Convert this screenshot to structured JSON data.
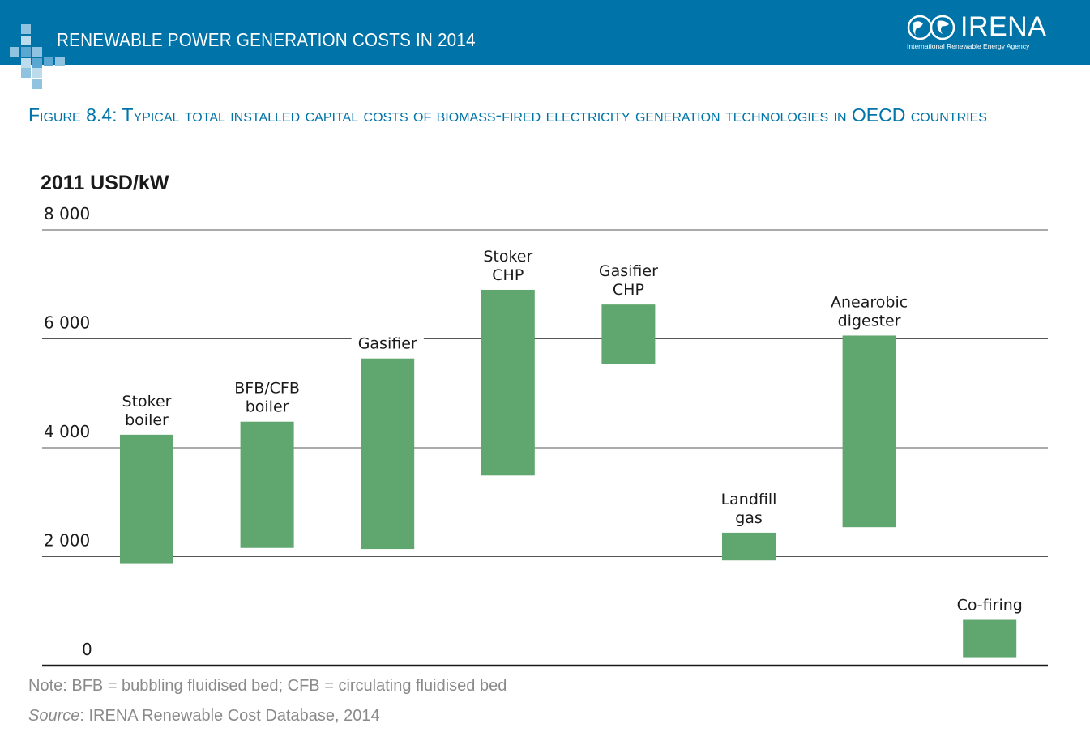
{
  "header": {
    "banner_title": "RENEWABLE POWER GENERATION COSTS IN 2014",
    "logo_word": "IRENA",
    "logo_subtitle": "International Renewable Energy Agency",
    "colors": {
      "banner": "#0073a8",
      "accent": "#0073a8",
      "bar": "#5fa76e"
    }
  },
  "figure": {
    "title": "Figure 8.4: Typical total installed capital costs of biomass-fired electricity generation technologies in OECD countries"
  },
  "chart_data": {
    "type": "bar",
    "subtype": "floating-range",
    "ylabel": "2011 USD/kW",
    "ylim": [
      0,
      8000
    ],
    "yticks": [
      0,
      2000,
      4000,
      6000,
      8000
    ],
    "ytick_labels": [
      "0",
      "2 000",
      "4 000",
      "6 000",
      "8 000"
    ],
    "grid": true,
    "categories": [
      [
        "Stoker",
        "boiler"
      ],
      [
        "BFB/CFB",
        "boiler"
      ],
      [
        "Gasifier"
      ],
      [
        "Stoker",
        "CHP"
      ],
      [
        "Gasifier",
        "CHP"
      ],
      [
        "Landfill",
        "gas"
      ],
      [
        "Anearobic",
        "digester"
      ],
      [
        "Co-firing"
      ]
    ],
    "low": [
      1880,
      2160,
      2140,
      3490,
      5540,
      1930,
      2540,
      140
    ],
    "high": [
      4240,
      4480,
      5640,
      6900,
      6630,
      2440,
      6060,
      840
    ]
  },
  "notes": {
    "note": "Note: BFB = bubbling fluidised bed; CFB = circulating fluidised bed",
    "source_label": "Source",
    "source_text": ": IRENA Renewable Cost Database, 2014"
  }
}
